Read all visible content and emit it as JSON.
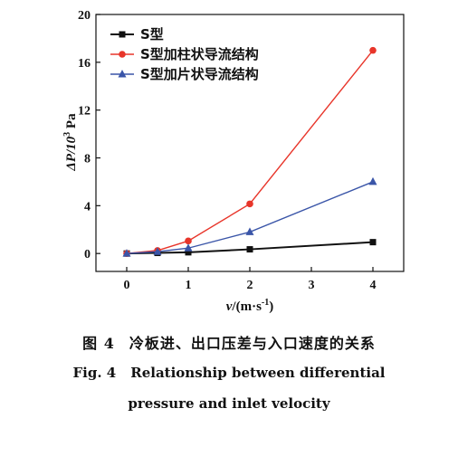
{
  "chart_data": {
    "type": "line",
    "xlabel_var": "v",
    "xlabel_unit": "/(m·s",
    "xlabel_sup": "-1",
    "xlabel_close": ")",
    "ylabel_main": "ΔP/10",
    "ylabel_sup": "3",
    "ylabel_unit": " Pa",
    "xlim": [
      -0.5,
      4.5
    ],
    "ylim": [
      -1.5,
      20
    ],
    "xticks": [
      "0",
      "1",
      "2",
      "3",
      "4"
    ],
    "yticks": [
      "0",
      "4",
      "8",
      "12",
      "16",
      "20"
    ],
    "grid": false,
    "legend_position": "top-left",
    "series": [
      {
        "name": "S型",
        "color": "#111111",
        "marker": "square",
        "x": [
          0,
          0.5,
          1,
          2,
          4
        ],
        "y": [
          0,
          0.05,
          0.1,
          0.35,
          0.95
        ]
      },
      {
        "name": "S型加柱状导流结构",
        "color": "#e8352a",
        "marker": "circle",
        "x": [
          0,
          0.5,
          1,
          2,
          4
        ],
        "y": [
          0,
          0.25,
          1.05,
          4.15,
          17.0
        ]
      },
      {
        "name": "S型加片状导流结构",
        "color": "#3a55a8",
        "marker": "triangle",
        "x": [
          0,
          0.5,
          1,
          2,
          4
        ],
        "y": [
          0,
          0.15,
          0.45,
          1.8,
          6.0
        ]
      }
    ]
  },
  "caption": {
    "cn_label": "图 4",
    "cn_text": "冷板进、出口压差与入口速度的关系",
    "en_label": "Fig. 4",
    "en_line1": "Relationship between differential",
    "en_line2": "pressure and inlet velocity"
  }
}
